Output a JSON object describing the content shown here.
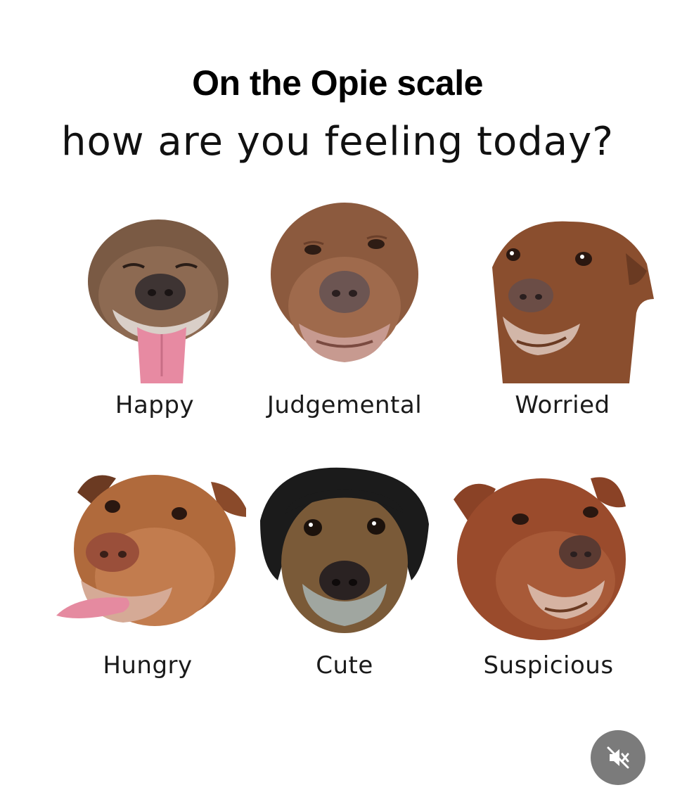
{
  "header": {
    "title": "On the Opie scale",
    "subtitle": "how are you feeling today?"
  },
  "moods": [
    {
      "label": "Happy",
      "icon": "dog-happy-face"
    },
    {
      "label": "Judgemental",
      "icon": "dog-judgemental-face"
    },
    {
      "label": "Worried",
      "icon": "dog-worried-face"
    },
    {
      "label": "Hungry",
      "icon": "dog-hungry-face"
    },
    {
      "label": "Cute",
      "icon": "dog-cute-wig-face"
    },
    {
      "label": "Suspicious",
      "icon": "dog-suspicious-face"
    }
  ],
  "controls": {
    "mute_icon": "muted-speaker-icon"
  },
  "colors": {
    "background": "#ffffff",
    "fur_brown": "#9a5a33",
    "fur_dark": "#6e4630",
    "nose": "#5b4a48",
    "tongue": "#e58aa0",
    "wig": "#1b1b1b",
    "mute_button": "#7b7b7b"
  }
}
